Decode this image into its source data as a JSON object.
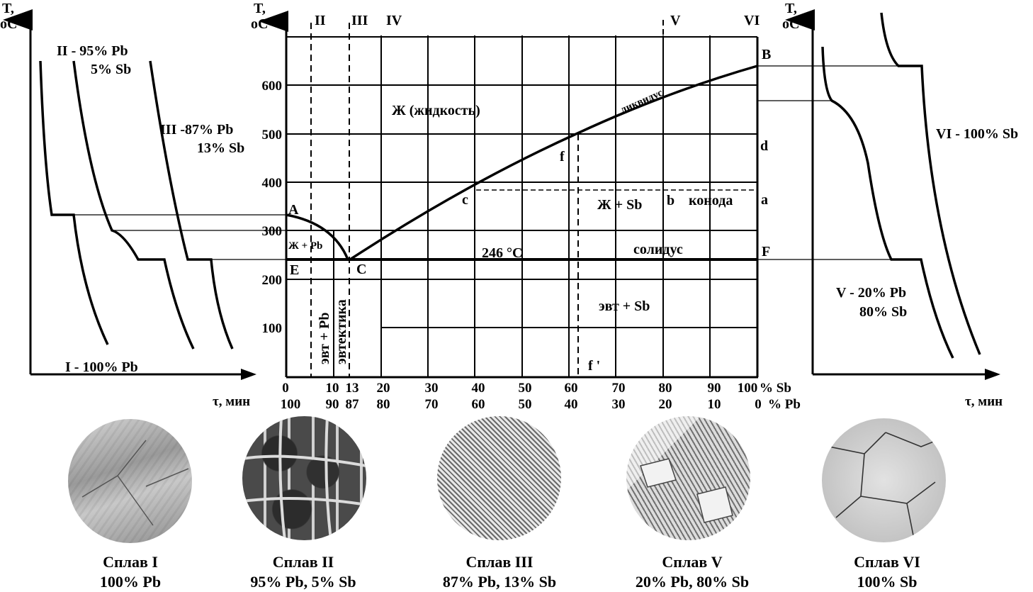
{
  "main_diagram": {
    "axis_title_line1": "T,",
    "axis_title_line2": "oC",
    "y_ticks": [
      "600",
      "500",
      "400",
      "300",
      "200",
      "100"
    ],
    "x_ticks_sb": [
      "0",
      "10",
      "13",
      "20",
      "30",
      "40",
      "50",
      "60",
      "70",
      "80",
      "90",
      "100"
    ],
    "x_ticks_pb": [
      "100",
      "90",
      "87",
      "80",
      "70",
      "60",
      "50",
      "40",
      "30",
      "20",
      "10",
      "0"
    ],
    "x_unit_sb": "% Sb",
    "x_unit_pb": "% Pb",
    "alloy_markers": [
      "II",
      "III",
      "IV",
      "V",
      "VI"
    ],
    "point_labels": {
      "A": "A",
      "B": "B",
      "C": "C",
      "E": "E",
      "F": "F",
      "a": "a",
      "b": "b",
      "c": "c",
      "d": "d",
      "f": "f",
      "f_prime": "f '"
    },
    "region_labels": {
      "liquid": "Ж (жидкость)",
      "liquidus": "ликвидус",
      "liquid_sb": "Ж + Sb",
      "conode": "конода",
      "liquid_pb": "Ж + Pb",
      "solidus": "солидус",
      "eutectic_temp": "246 °C",
      "eut_sb": "эвт + Sb",
      "eut_pb": "эвт + Pb",
      "eutectic": "эвтектика"
    }
  },
  "left_cooling": {
    "axis_title_line1": "T,",
    "axis_title_line2": "oC",
    "x_axis_label": "τ, мин",
    "curve_I": "I - 100% Pb",
    "curve_II_line1": "II - 95% Pb",
    "curve_II_line2": "5% Sb",
    "curve_III_line1": "III -87% Pb",
    "curve_III_line2": "13% Sb"
  },
  "right_cooling": {
    "axis_title_line1": "T,",
    "axis_title_line2": "oC",
    "x_axis_label": "τ, мин",
    "curve_VI": "VI - 100% Sb",
    "curve_V_line1": "V - 20% Pb",
    "curve_V_line2": "80% Sb"
  },
  "micrographs": [
    {
      "title": "Сплав I",
      "subtitle": "100% Pb"
    },
    {
      "title": "Сплав II",
      "subtitle": "95% Pb, 5% Sb"
    },
    {
      "title": "Сплав III",
      "subtitle": "87% Pb, 13% Sb"
    },
    {
      "title": "Сплав V",
      "subtitle": "20% Pb, 80% Sb"
    },
    {
      "title": "Сплав VI",
      "subtitle": "100% Sb"
    }
  ]
}
